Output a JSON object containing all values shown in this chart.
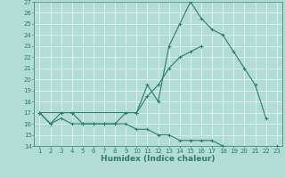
{
  "xlabel": "Humidex (Indice chaleur)",
  "x_values": [
    1,
    2,
    3,
    4,
    5,
    6,
    7,
    8,
    9,
    10,
    11,
    12,
    13,
    14,
    15,
    16,
    17,
    18,
    19,
    20,
    21,
    22,
    23
  ],
  "line1": [
    17,
    16,
    17,
    17,
    16,
    16,
    16,
    16,
    17,
    17,
    19.5,
    18,
    23,
    25,
    27,
    25.5,
    24.5,
    24,
    22.5,
    21,
    19.5,
    16.5,
    null
  ],
  "line2": [
    17,
    null,
    17,
    17,
    null,
    null,
    null,
    null,
    null,
    17,
    18.5,
    19.5,
    21,
    22,
    22.5,
    23,
    null,
    null,
    null,
    null,
    null,
    null,
    null
  ],
  "line3": [
    17,
    16,
    16.5,
    16,
    16,
    16,
    16,
    16,
    16,
    15.5,
    15.5,
    15,
    15,
    14.5,
    14.5,
    14.5,
    14.5,
    14,
    null,
    null,
    null,
    null,
    14
  ],
  "xlim": [
    0.5,
    23.5
  ],
  "ylim": [
    14,
    27
  ],
  "yticks": [
    14,
    15,
    16,
    17,
    18,
    19,
    20,
    21,
    22,
    23,
    24,
    25,
    26,
    27
  ],
  "xticks": [
    1,
    2,
    3,
    4,
    5,
    6,
    7,
    8,
    9,
    10,
    11,
    12,
    13,
    14,
    15,
    16,
    17,
    18,
    19,
    20,
    21,
    22,
    23
  ],
  "line_color": "#2e7d6e",
  "bg_color": "#b2ddd4",
  "grid_color": "#ffffff",
  "tick_fontsize": 5.0,
  "label_fontsize": 6.5
}
